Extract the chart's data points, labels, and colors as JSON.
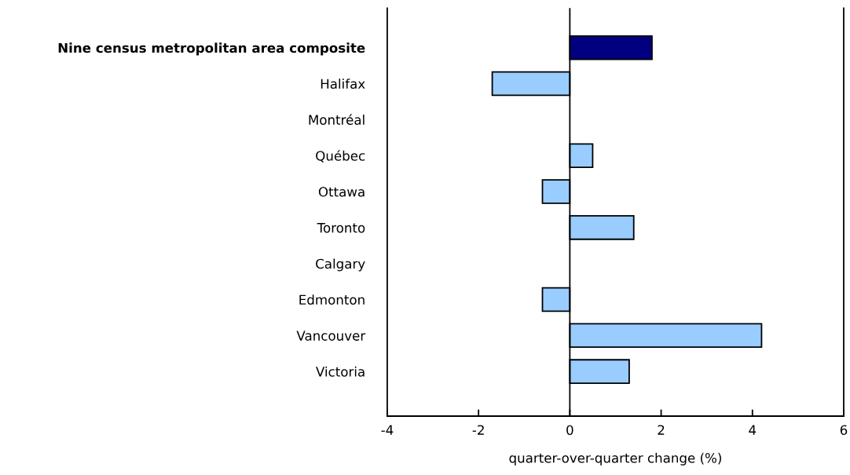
{
  "chart_data": {
    "type": "bar",
    "orientation": "horizontal",
    "xlabel": "quarter-over-quarter change (%)",
    "categories": [
      "Nine census metropolitan area composite",
      "Halifax",
      "Montréal",
      "Québec",
      "Ottawa",
      "Toronto",
      "Calgary",
      "Edmonton",
      "Vancouver",
      "Victoria"
    ],
    "values": [
      1.8,
      -1.7,
      0,
      0.5,
      -0.6,
      1.4,
      0,
      -0.6,
      4.2,
      1.3
    ],
    "colors": [
      "#000080",
      "#99ccff",
      "#99ccff",
      "#99ccff",
      "#99ccff",
      "#99ccff",
      "#99ccff",
      "#99ccff",
      "#99ccff",
      "#99ccff"
    ],
    "ref_lines": [
      {
        "axis": "x",
        "value": 0,
        "color": "#000000"
      }
    ],
    "xlim": [
      -4,
      6
    ],
    "xticks": [
      -4,
      -2,
      0,
      2,
      4,
      6
    ],
    "grid": false,
    "legend": false
  }
}
